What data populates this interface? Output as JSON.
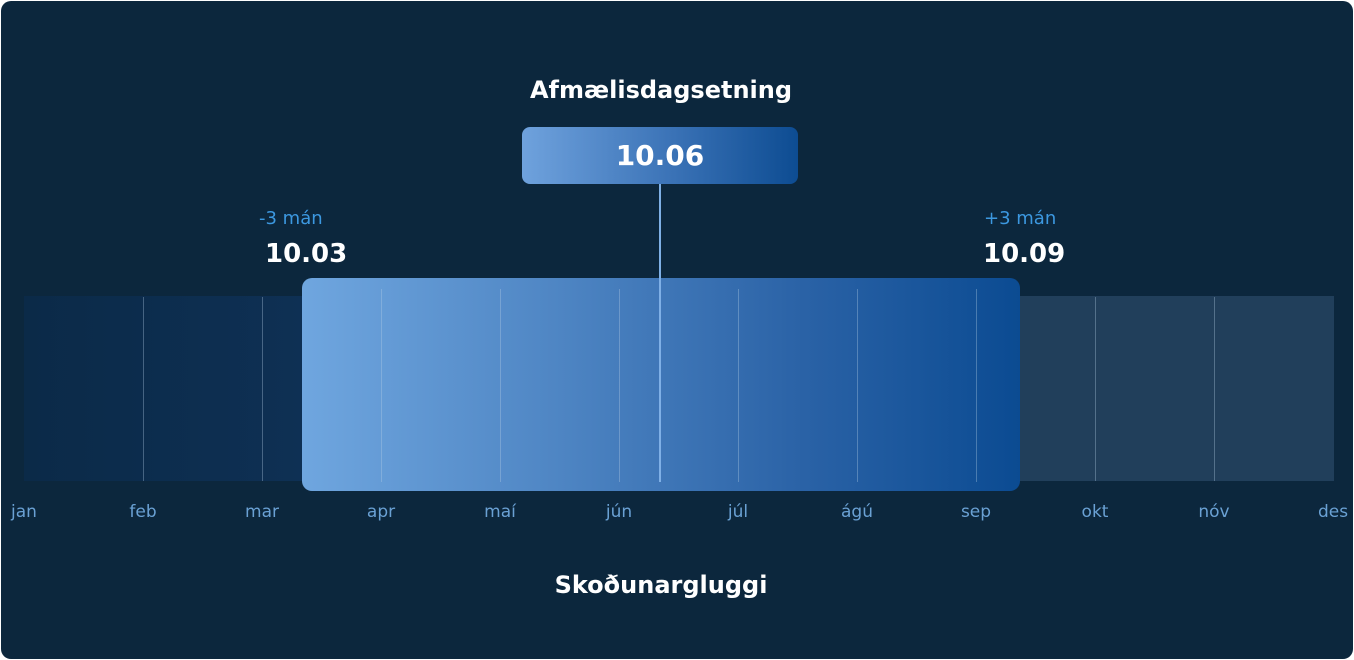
{
  "birthday_label": "Afmælisdagsetning",
  "birthday_date": "10.06",
  "start": {
    "offset": "-3 mán",
    "date": "10.03"
  },
  "end": {
    "offset": "+3 mán",
    "date": "10.09"
  },
  "window_label": "Skoðunargluggi",
  "months": [
    "jan",
    "feb",
    "mar",
    "apr",
    "maí",
    "jún",
    "júl",
    "ágú",
    "sep",
    "okt",
    "nóv",
    "des"
  ],
  "colors": {
    "background": "#0c273d",
    "window_start": "#6fa6df",
    "window_end": "#0b4b92",
    "offset_text": "#3c98e0",
    "month_text": "#6aa1d4"
  }
}
